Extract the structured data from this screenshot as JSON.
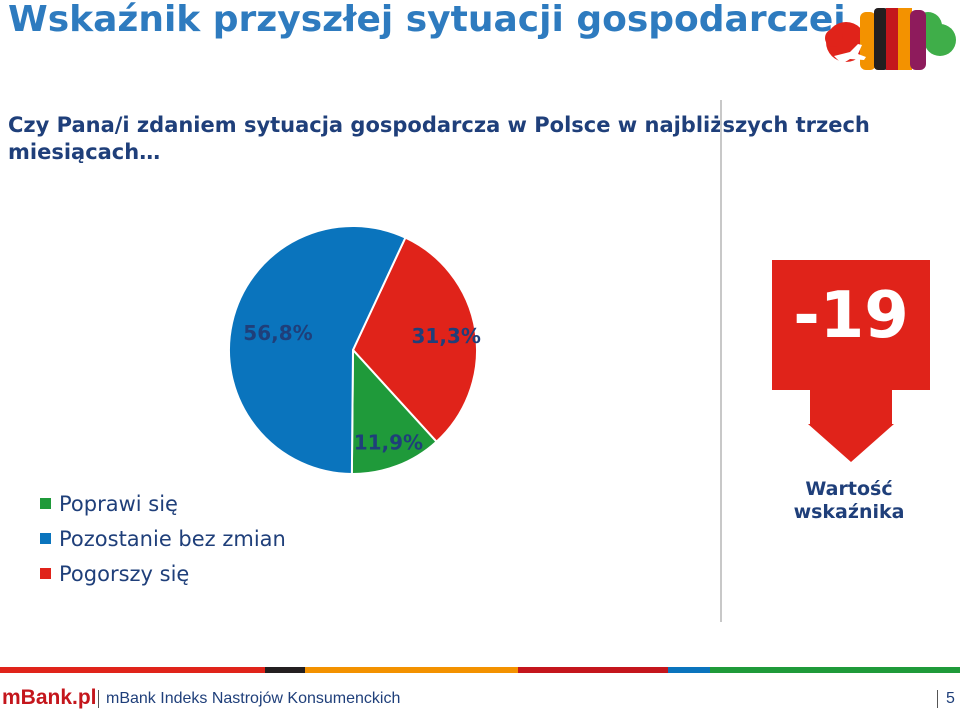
{
  "title": "Wskaźnik przyszłej sytuacji gospodarczej",
  "question": "Czy Pana/i zdaniem sytuacja gospodarcza w Polsce w najbliższych trzech miesiącach…",
  "chart_data": {
    "type": "pie",
    "slices": [
      {
        "label": "Poprawi się",
        "value": 11.9,
        "value_label": "11,9%",
        "color": "#1f9a3a"
      },
      {
        "label": "Pozostanie bez zmian",
        "value": 56.8,
        "value_label": "56,8%",
        "color": "#0a74bd"
      },
      {
        "label": "Pogorszy się",
        "value": 31.3,
        "value_label": "31,3%",
        "color": "#e0231a"
      }
    ],
    "legend_placement": "bottom-left"
  },
  "indicator": {
    "value": "-19",
    "caption": "Wartość wskaźnika",
    "color": "#e0231a"
  },
  "footer": {
    "logo": "mBank.pl",
    "text": "mBank Indeks Nastrojów Konsumenckich",
    "page": "5",
    "bar_colors": [
      "#e0231a",
      "#231f20",
      "#f39200",
      "#c4161c",
      "#0a74bd",
      "#1f9a3a"
    ]
  }
}
